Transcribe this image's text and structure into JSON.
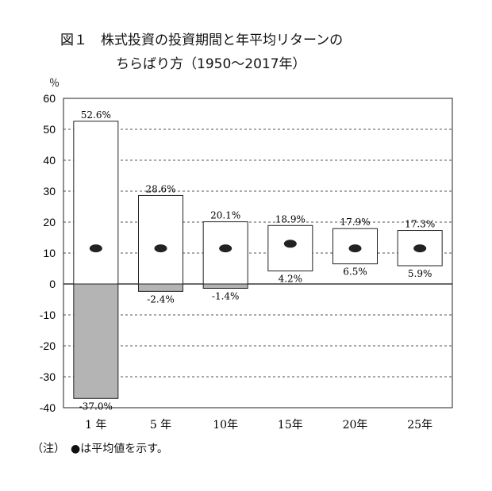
{
  "title": {
    "line1": "図１　株式投資の投資期間と年平均リターンの",
    "line2": "ちらばり方（1950〜2017年）"
  },
  "ylabel": "％",
  "note": "（注）　●は平均値を示す。",
  "chart_data": {
    "type": "bar",
    "subtype": "floating-range",
    "title": "図１　株式投資の投資期間と年平均リターンのちらばり方（1950〜2017年）",
    "ylabel": "％",
    "ylim": [
      -40,
      60
    ],
    "yticks": [
      -40,
      -30,
      -20,
      -10,
      0,
      10,
      20,
      30,
      40,
      50,
      60
    ],
    "grid": "horizontal dashed",
    "categories": [
      "1 年",
      "5 年",
      "10年",
      "15年",
      "20年",
      "25年"
    ],
    "max": [
      52.6,
      28.6,
      20.1,
      18.9,
      17.9,
      17.3
    ],
    "min": [
      -37.0,
      -2.4,
      -1.4,
      4.2,
      6.5,
      5.9
    ],
    "max_labels": [
      "52.6%",
      "28.6%",
      "20.1%",
      "18.9%",
      "17.9%",
      "17.3%"
    ],
    "min_labels": [
      "-37.0%",
      "-2.4%",
      "-1.4%",
      "4.2%",
      "6.5%",
      "5.9%"
    ],
    "mean": [
      11.5,
      11.5,
      11.5,
      13.0,
      11.5,
      11.5
    ],
    "colors": {
      "positive": "#ffffff",
      "negative": "#b4b4b4",
      "mean": "#222222",
      "grid": "#555555"
    }
  }
}
